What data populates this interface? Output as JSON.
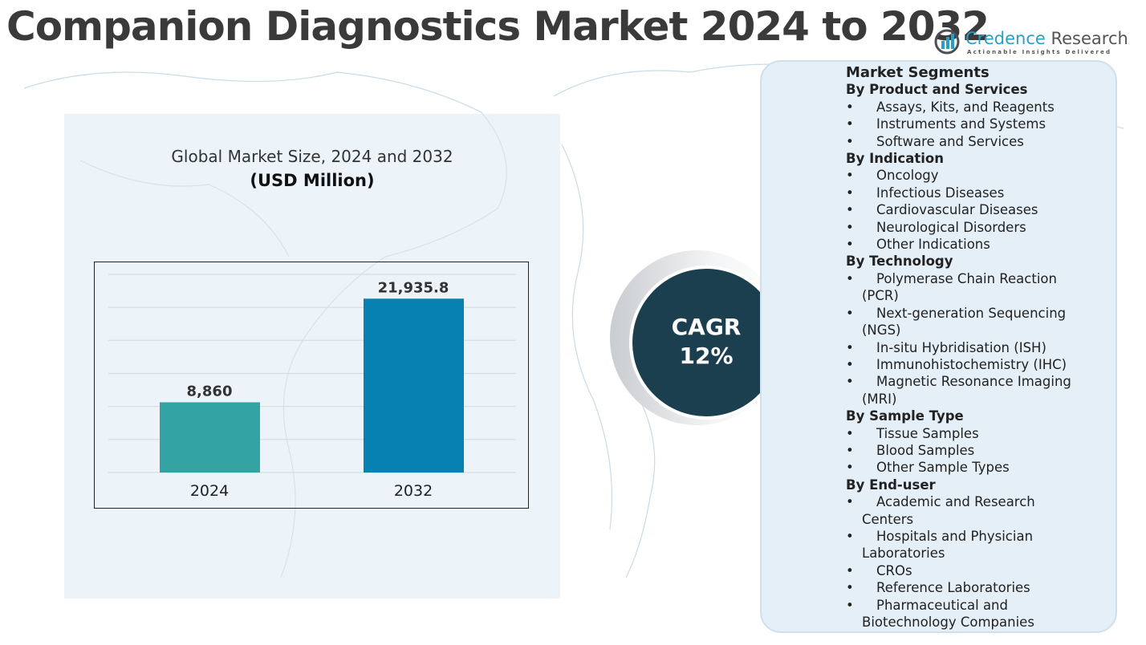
{
  "title": "Companion Diagnostics Market 2024 to 2032",
  "logo": {
    "name_part1": "Credence",
    "name_part2": "Research",
    "tagline": "Actionable Insights Delivered"
  },
  "chart_data": {
    "type": "bar",
    "title": "Global Market Size, 2024 and 2032",
    "subtitle": "(USD Million)",
    "categories": [
      "2024",
      "2032"
    ],
    "values": [
      8860,
      21935.8
    ],
    "data_labels": [
      "8,860",
      "21,935.8"
    ],
    "colors": [
      "#34a3a3",
      "#0780b2"
    ],
    "grid": true,
    "ylim": [
      0,
      25000
    ]
  },
  "cagr": {
    "label": "CAGR",
    "value": "12%"
  },
  "segments": {
    "heading": "Market Segments",
    "groups": [
      {
        "title": "By Product and Services",
        "items": [
          {
            "first": "Assays, Kits, and Reagents"
          },
          {
            "first": "Instruments and Systems"
          },
          {
            "first": "Software and Services"
          }
        ]
      },
      {
        "title": "By Indication",
        "items": [
          {
            "first": "Oncology"
          },
          {
            "first": "Infectious Diseases"
          },
          {
            "first": "Cardiovascular Diseases"
          },
          {
            "first": "Neurological Disorders"
          },
          {
            "first": "Other Indications"
          }
        ]
      },
      {
        "title": "By Technology",
        "items": [
          {
            "first": "Polymerase Chain Reaction",
            "rest": "(PCR)"
          },
          {
            "first": "Next-generation Sequencing",
            "rest": "(NGS)"
          },
          {
            "first": "In-situ Hybridisation (ISH)"
          },
          {
            "first": "Immunohistochemistry (IHC)"
          },
          {
            "first": "Magnetic Resonance Imaging",
            "rest": "(MRI)"
          }
        ]
      },
      {
        "title": "By Sample Type",
        "items": [
          {
            "first": "Tissue Samples"
          },
          {
            "first": "Blood Samples"
          },
          {
            "first": "Other Sample Types"
          }
        ]
      },
      {
        "title": "By End-user",
        "items": [
          {
            "first": "Academic and Research",
            "rest": "Centers"
          },
          {
            "first": "Hospitals and Physician",
            "rest": "Laboratories"
          },
          {
            "first": "CROs"
          },
          {
            "first": "Reference Laboratories"
          },
          {
            "first": "Pharmaceutical and",
            "rest": "Biotechnology Companies"
          }
        ]
      }
    ]
  }
}
